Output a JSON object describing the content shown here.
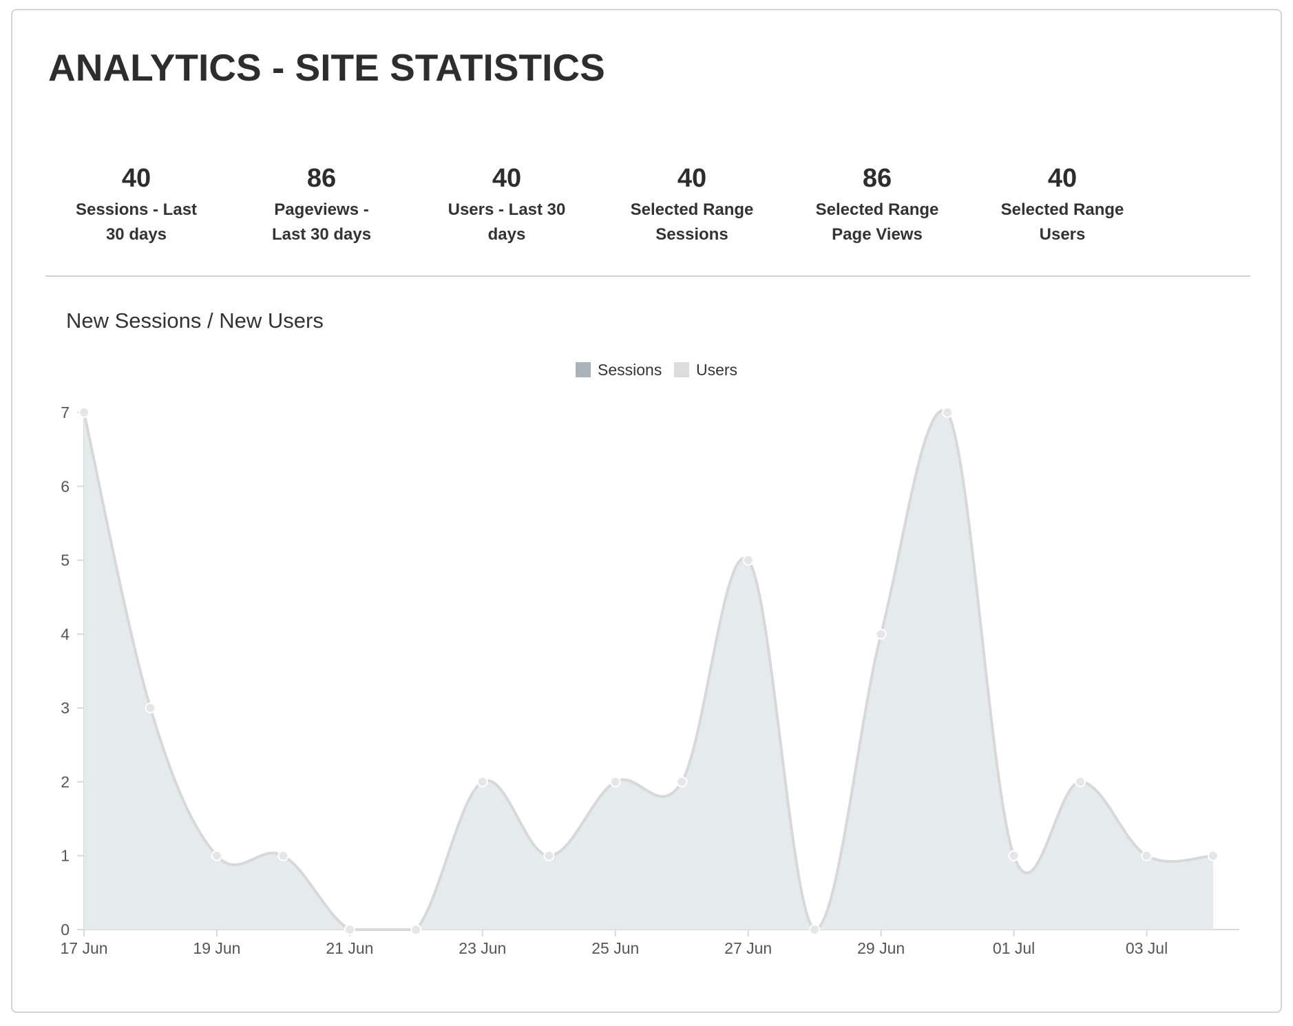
{
  "page": {
    "title": "ANALYTICS - SITE STATISTICS"
  },
  "stats": [
    {
      "value": "40",
      "label_line1": "Sessions - Last",
      "label_line2": "30 days"
    },
    {
      "value": "86",
      "label_line1": "Pageviews -",
      "label_line2": "Last 30 days"
    },
    {
      "value": "40",
      "label_line1": "Users - Last 30",
      "label_line2": "days"
    },
    {
      "value": "40",
      "label_line1": "Selected Range",
      "label_line2": "Sessions"
    },
    {
      "value": "86",
      "label_line1": "Selected Range",
      "label_line2": "Page Views"
    },
    {
      "value": "40",
      "label_line1": "Selected Range",
      "label_line2": "Users"
    }
  ],
  "chart_data": {
    "type": "area",
    "title": "New Sessions / New Users",
    "legend": {
      "position": "top",
      "entries": [
        "Sessions",
        "Users"
      ]
    },
    "x": [
      "17 Jun",
      "18 Jun",
      "19 Jun",
      "20 Jun",
      "21 Jun",
      "22 Jun",
      "23 Jun",
      "24 Jun",
      "25 Jun",
      "26 Jun",
      "27 Jun",
      "28 Jun",
      "29 Jun",
      "30 Jun",
      "01 Jul",
      "02 Jul",
      "03 Jul",
      "04 Jul"
    ],
    "x_tick_labels": [
      "17 Jun",
      "19 Jun",
      "21 Jun",
      "23 Jun",
      "25 Jun",
      "27 Jun",
      "29 Jun",
      "01 Jul",
      "03 Jul"
    ],
    "y_ticks": [
      0,
      1,
      2,
      3,
      4,
      5,
      6,
      7
    ],
    "ylim": [
      0,
      7
    ],
    "grid": false,
    "series": [
      {
        "name": "Sessions",
        "color": "#aab2ba",
        "values": [
          7,
          3,
          1,
          1,
          0,
          0,
          2,
          1,
          2,
          2,
          5,
          0,
          4,
          7,
          1,
          2,
          1,
          1
        ]
      },
      {
        "name": "Users",
        "color": "#dcdcdc",
        "values": [
          7,
          3,
          1,
          1,
          0,
          0,
          2,
          1,
          2,
          2,
          5,
          0,
          4,
          7,
          1,
          2,
          1,
          1
        ]
      }
    ],
    "colors": {
      "area_fill": "#e5eaed",
      "line": "#d8d8d8",
      "point_fill": "#e6e6e6",
      "axis": "#d9d9d9"
    }
  }
}
